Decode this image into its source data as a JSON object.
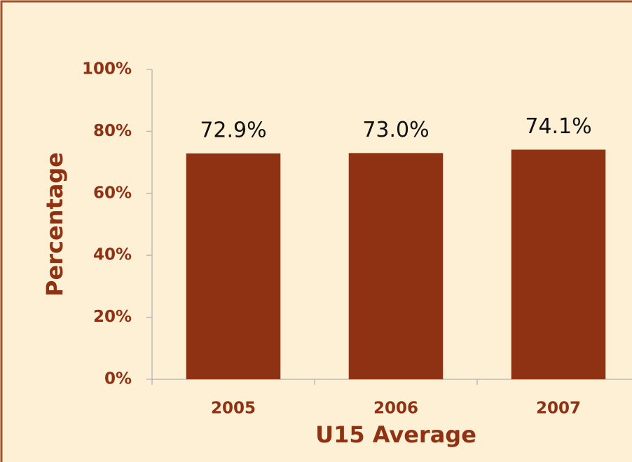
{
  "chart_data": {
    "type": "bar",
    "categories": [
      "2005",
      "2006",
      "2007"
    ],
    "values": [
      72.9,
      73.0,
      74.1
    ],
    "value_labels": [
      "72.9%",
      "73.0%",
      "74.1%"
    ],
    "color": "#8f3214",
    "xlabel": "U15 Average",
    "ylabel": "Percentage",
    "ylim": [
      0,
      100
    ],
    "yticks": [
      {
        "value": 0,
        "label": "0%"
      },
      {
        "value": 20,
        "label": "20%"
      },
      {
        "value": 40,
        "label": "40%"
      },
      {
        "value": 60,
        "label": "60%"
      },
      {
        "value": 80,
        "label": "80%"
      },
      {
        "value": 100,
        "label": "100%"
      }
    ],
    "grid": false
  }
}
